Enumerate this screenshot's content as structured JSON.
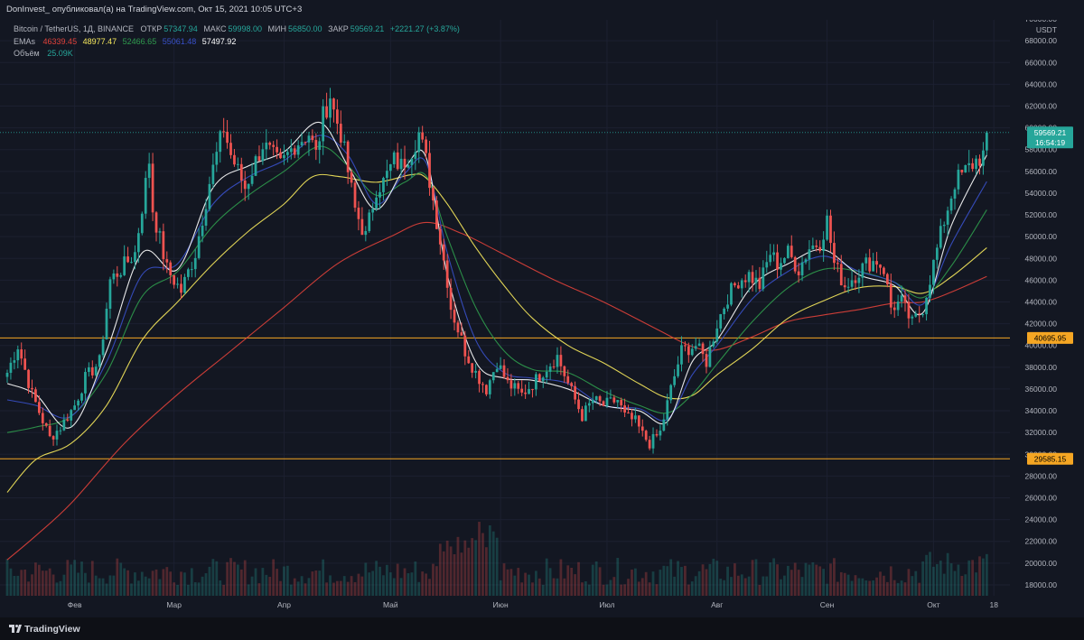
{
  "header": {
    "publisher_line": "DonInvest_ опубликовал(а) на TradingView.com, Окт 15, 2021 10:05 UTC+3"
  },
  "legend": {
    "symbol": "Bitcoin / TetherUS, 1Д, BINANCE",
    "open_label": "ОТКР",
    "open_value": "57347.94",
    "high_label": "МАКС",
    "high_value": "59998.00",
    "low_label": "МИН",
    "low_value": "56850.00",
    "close_label": "ЗАКР",
    "close_value": "59569.21",
    "change": "+2221.27 (+3.87%)",
    "ema_label": "EMAs",
    "ema_values": [
      "46339.45",
      "48977.47",
      "52466.65",
      "55061.48",
      "57497.92"
    ],
    "volume_label": "Объём",
    "volume_value": "25.09K"
  },
  "colors": {
    "background": "#131722",
    "up": "#26a69a",
    "down": "#ef5350",
    "ema_red": "#e0413a",
    "ema_yellow": "#f7e95c",
    "ema_green": "#2f9b4d",
    "ema_blue": "#3850c8",
    "ema_white": "#ffffff",
    "level_line": "#f5a623"
  },
  "footer": {
    "brand": "TradingView"
  },
  "chart_data": {
    "type": "candlestick",
    "title": "Bitcoin / TetherUS, 1Д, BINANCE",
    "currency_label": "USDT",
    "ylim": [
      17000,
      70500
    ],
    "y_ticks": [
      18000,
      20000,
      22000,
      24000,
      26000,
      28000,
      30000,
      32000,
      34000,
      36000,
      38000,
      40000,
      42000,
      44000,
      46000,
      48000,
      50000,
      52000,
      54000,
      56000,
      58000,
      60000,
      62000,
      64000,
      66000,
      68000,
      70000
    ],
    "y_tick_labels": [
      "18000.00",
      "20000.00",
      "22000.00",
      "24000.00",
      "26000.00",
      "28000.00",
      "30000.00",
      "32000.00",
      "34000.00",
      "36000.00",
      "38000.00",
      "40000.00",
      "42000.00",
      "44000.00",
      "46000.00",
      "48000.00",
      "50000.00",
      "52000.00",
      "54000.00",
      "56000.00",
      "58000.00",
      "60000.00",
      "62000.00",
      "64000.00",
      "66000.00",
      "68000.00",
      "70000.00"
    ],
    "x_labels": [
      {
        "label": "Фев",
        "day": 31
      },
      {
        "label": "Мар",
        "day": 59
      },
      {
        "label": "Апр",
        "day": 90
      },
      {
        "label": "Май",
        "day": 120
      },
      {
        "label": "Июн",
        "day": 151
      },
      {
        "label": "Июл",
        "day": 181
      },
      {
        "label": "Авг",
        "day": 212
      },
      {
        "label": "Сен",
        "day": 243
      },
      {
        "label": "Окт",
        "day": 273
      },
      {
        "label": "18",
        "day": 290
      }
    ],
    "x_range_days": [
      12,
      293
    ],
    "horizontal_levels": [
      {
        "value": 40695.95,
        "label": "40695.95"
      },
      {
        "value": 29585.15,
        "label": "29585.15"
      }
    ],
    "last_price": {
      "value": 59569.21,
      "label": "59569.21",
      "countdown": "16:54:19"
    },
    "anchors": [
      [
        12,
        37500
      ],
      [
        15,
        40000
      ],
      [
        19,
        35500
      ],
      [
        24,
        31500
      ],
      [
        27,
        32500
      ],
      [
        31,
        34500
      ],
      [
        34,
        37000
      ],
      [
        38,
        38500
      ],
      [
        41,
        46000
      ],
      [
        44,
        47000
      ],
      [
        48,
        48500
      ],
      [
        52,
        57000
      ],
      [
        53,
        52500
      ],
      [
        57,
        47000
      ],
      [
        61,
        45000
      ],
      [
        65,
        48500
      ],
      [
        69,
        55000
      ],
      [
        73,
        60000
      ],
      [
        75,
        57500
      ],
      [
        79,
        54500
      ],
      [
        84,
        58500
      ],
      [
        89,
        56500
      ],
      [
        93,
        58500
      ],
      [
        97,
        59500
      ],
      [
        99,
        57500
      ],
      [
        101,
        61000
      ],
      [
        103,
        63000
      ],
      [
        104,
        61500
      ],
      [
        106,
        59500
      ],
      [
        110,
        52500
      ],
      [
        113,
        50000
      ],
      [
        116,
        54500
      ],
      [
        118,
        55000
      ],
      [
        121,
        57000
      ],
      [
        123,
        56500
      ],
      [
        126,
        58000
      ],
      [
        128,
        59500
      ],
      [
        130,
        57000
      ],
      [
        133,
        51500
      ],
      [
        136,
        46000
      ],
      [
        137,
        43500
      ],
      [
        141,
        39500
      ],
      [
        144,
        37500
      ],
      [
        147,
        36000
      ],
      [
        150,
        38500
      ],
      [
        153,
        36500
      ],
      [
        157,
        35500
      ],
      [
        160,
        36500
      ],
      [
        164,
        38000
      ],
      [
        167,
        39000
      ],
      [
        170,
        36500
      ],
      [
        174,
        33500
      ],
      [
        177,
        35000
      ],
      [
        180,
        34500
      ],
      [
        184,
        35000
      ],
      [
        186,
        33500
      ],
      [
        189,
        33000
      ],
      [
        191,
        31800
      ],
      [
        193,
        31000
      ],
      [
        196,
        32000
      ],
      [
        199,
        36000
      ],
      [
        202,
        39500
      ],
      [
        206,
        40000
      ],
      [
        209,
        38500
      ],
      [
        212,
        42000
      ],
      [
        215,
        44500
      ],
      [
        218,
        46000
      ],
      [
        221,
        46500
      ],
      [
        224,
        45500
      ],
      [
        227,
        48500
      ],
      [
        229,
        47500
      ],
      [
        232,
        48500
      ],
      [
        235,
        47000
      ],
      [
        238,
        49000
      ],
      [
        241,
        49500
      ],
      [
        243,
        51500
      ],
      [
        245,
        47500
      ],
      [
        248,
        45500
      ],
      [
        251,
        46500
      ],
      [
        254,
        47500
      ],
      [
        257,
        47800
      ],
      [
        259,
        47000
      ],
      [
        261,
        43500
      ],
      [
        264,
        44000
      ],
      [
        267,
        42000
      ],
      [
        270,
        43500
      ],
      [
        273,
        47500
      ],
      [
        276,
        51500
      ],
      [
        279,
        55000
      ],
      [
        282,
        56000
      ],
      [
        285,
        57000
      ],
      [
        287,
        57500
      ],
      [
        288,
        59569
      ]
    ],
    "emas": [
      {
        "name": "EMA red",
        "color": "#e0413a",
        "points": [
          [
            12,
            20300
          ],
          [
            20,
            22500
          ],
          [
            30,
            25500
          ],
          [
            45,
            31000
          ],
          [
            60,
            35500
          ],
          [
            75,
            39500
          ],
          [
            90,
            43500
          ],
          [
            105,
            47500
          ],
          [
            120,
            50000
          ],
          [
            130,
            51300
          ],
          [
            140,
            50300
          ],
          [
            150,
            48700
          ],
          [
            165,
            46200
          ],
          [
            180,
            44000
          ],
          [
            195,
            41500
          ],
          [
            205,
            39900
          ],
          [
            212,
            39600
          ],
          [
            222,
            40800
          ],
          [
            232,
            42200
          ],
          [
            242,
            42800
          ],
          [
            252,
            43300
          ],
          [
            262,
            43900
          ],
          [
            270,
            44000
          ],
          [
            278,
            44900
          ],
          [
            288,
            46339
          ]
        ]
      },
      {
        "name": "EMA yellow",
        "color": "#f7e95c",
        "points": [
          [
            12,
            26500
          ],
          [
            20,
            29500
          ],
          [
            30,
            31000
          ],
          [
            40,
            34500
          ],
          [
            50,
            40500
          ],
          [
            60,
            44000
          ],
          [
            70,
            47500
          ],
          [
            80,
            50500
          ],
          [
            90,
            53000
          ],
          [
            98,
            55500
          ],
          [
            106,
            55500
          ],
          [
            116,
            55000
          ],
          [
            126,
            55700
          ],
          [
            130,
            55400
          ],
          [
            136,
            53000
          ],
          [
            144,
            49000
          ],
          [
            152,
            45500
          ],
          [
            160,
            42500
          ],
          [
            170,
            40000
          ],
          [
            180,
            38400
          ],
          [
            190,
            36500
          ],
          [
            198,
            35200
          ],
          [
            205,
            35400
          ],
          [
            212,
            37300
          ],
          [
            222,
            39700
          ],
          [
            232,
            42500
          ],
          [
            242,
            44100
          ],
          [
            252,
            45300
          ],
          [
            262,
            45400
          ],
          [
            270,
            44800
          ],
          [
            278,
            46300
          ],
          [
            288,
            48977
          ]
        ]
      },
      {
        "name": "EMA green",
        "color": "#2f9b4d",
        "points": [
          [
            12,
            32000
          ],
          [
            20,
            32500
          ],
          [
            30,
            33500
          ],
          [
            40,
            37500
          ],
          [
            50,
            44500
          ],
          [
            60,
            46800
          ],
          [
            70,
            51000
          ],
          [
            80,
            53800
          ],
          [
            90,
            56000
          ],
          [
            100,
            58300
          ],
          [
            108,
            56500
          ],
          [
            116,
            53800
          ],
          [
            124,
            55000
          ],
          [
            130,
            55600
          ],
          [
            136,
            50000
          ],
          [
            144,
            43500
          ],
          [
            152,
            39500
          ],
          [
            160,
            37800
          ],
          [
            170,
            37500
          ],
          [
            180,
            35800
          ],
          [
            190,
            34500
          ],
          [
            198,
            33800
          ],
          [
            205,
            35500
          ],
          [
            212,
            38300
          ],
          [
            222,
            42200
          ],
          [
            232,
            45300
          ],
          [
            242,
            47000
          ],
          [
            252,
            46800
          ],
          [
            262,
            45800
          ],
          [
            270,
            44400
          ],
          [
            278,
            47300
          ],
          [
            288,
            52466
          ]
        ]
      },
      {
        "name": "EMA blue",
        "color": "#3850c8",
        "points": [
          [
            12,
            35000
          ],
          [
            20,
            34500
          ],
          [
            30,
            33500
          ],
          [
            40,
            38500
          ],
          [
            50,
            46500
          ],
          [
            60,
            47500
          ],
          [
            70,
            53000
          ],
          [
            80,
            55500
          ],
          [
            90,
            57000
          ],
          [
            100,
            59300
          ],
          [
            108,
            57500
          ],
          [
            116,
            53000
          ],
          [
            124,
            55800
          ],
          [
            130,
            56800
          ],
          [
            136,
            48500
          ],
          [
            144,
            40500
          ],
          [
            152,
            37500
          ],
          [
            160,
            37000
          ],
          [
            170,
            36500
          ],
          [
            180,
            34500
          ],
          [
            190,
            34200
          ],
          [
            198,
            33200
          ],
          [
            205,
            37300
          ],
          [
            212,
            40000
          ],
          [
            222,
            44300
          ],
          [
            232,
            46800
          ],
          [
            242,
            48200
          ],
          [
            252,
            46800
          ],
          [
            262,
            45800
          ],
          [
            270,
            43800
          ],
          [
            278,
            49300
          ],
          [
            288,
            55061
          ]
        ]
      },
      {
        "name": "EMA white",
        "color": "#ffffff",
        "points": [
          [
            12,
            36500
          ],
          [
            20,
            35500
          ],
          [
            30,
            32500
          ],
          [
            40,
            39500
          ],
          [
            50,
            48500
          ],
          [
            60,
            47000
          ],
          [
            70,
            54500
          ],
          [
            80,
            56500
          ],
          [
            90,
            57800
          ],
          [
            100,
            60500
          ],
          [
            108,
            56500
          ],
          [
            116,
            52500
          ],
          [
            124,
            56300
          ],
          [
            130,
            57300
          ],
          [
            136,
            46500
          ],
          [
            144,
            38500
          ],
          [
            152,
            37000
          ],
          [
            160,
            36800
          ],
          [
            170,
            36000
          ],
          [
            180,
            34500
          ],
          [
            190,
            34000
          ],
          [
            198,
            33000
          ],
          [
            205,
            38500
          ],
          [
            212,
            40500
          ],
          [
            222,
            45500
          ],
          [
            232,
            47500
          ],
          [
            242,
            48800
          ],
          [
            252,
            46500
          ],
          [
            262,
            45500
          ],
          [
            270,
            43000
          ],
          [
            278,
            51000
          ],
          [
            288,
            57497
          ]
        ]
      }
    ],
    "volume": {
      "label": "Объём",
      "last": "25.09K"
    }
  }
}
